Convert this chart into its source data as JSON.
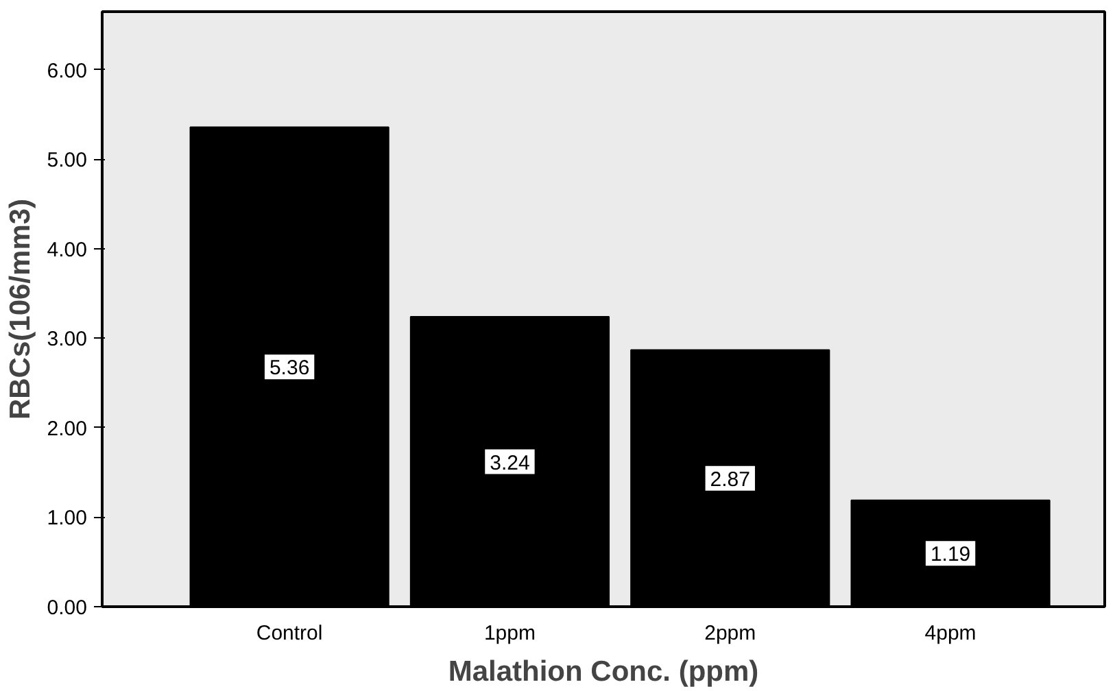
{
  "chart_data": {
    "type": "bar",
    "xlabel": "Malathion Conc. (ppm)",
    "ylabel": "RBCs(106/mm3)",
    "categories": [
      "Control",
      "1ppm",
      "2ppm",
      "4ppm"
    ],
    "values": [
      5.36,
      3.24,
      2.87,
      1.19
    ],
    "color": "#000000",
    "data_labels": true,
    "ylim": [
      0,
      6.65
    ],
    "yticks": [
      {
        "value": 0,
        "label": "0.00"
      },
      {
        "value": 1,
        "label": "1.00"
      },
      {
        "value": 2,
        "label": "2.00"
      },
      {
        "value": 3,
        "label": "3.00"
      },
      {
        "value": 4,
        "label": "4.00"
      },
      {
        "value": 5,
        "label": "5.00"
      },
      {
        "value": 6,
        "label": "6.00"
      }
    ],
    "grid": false
  }
}
